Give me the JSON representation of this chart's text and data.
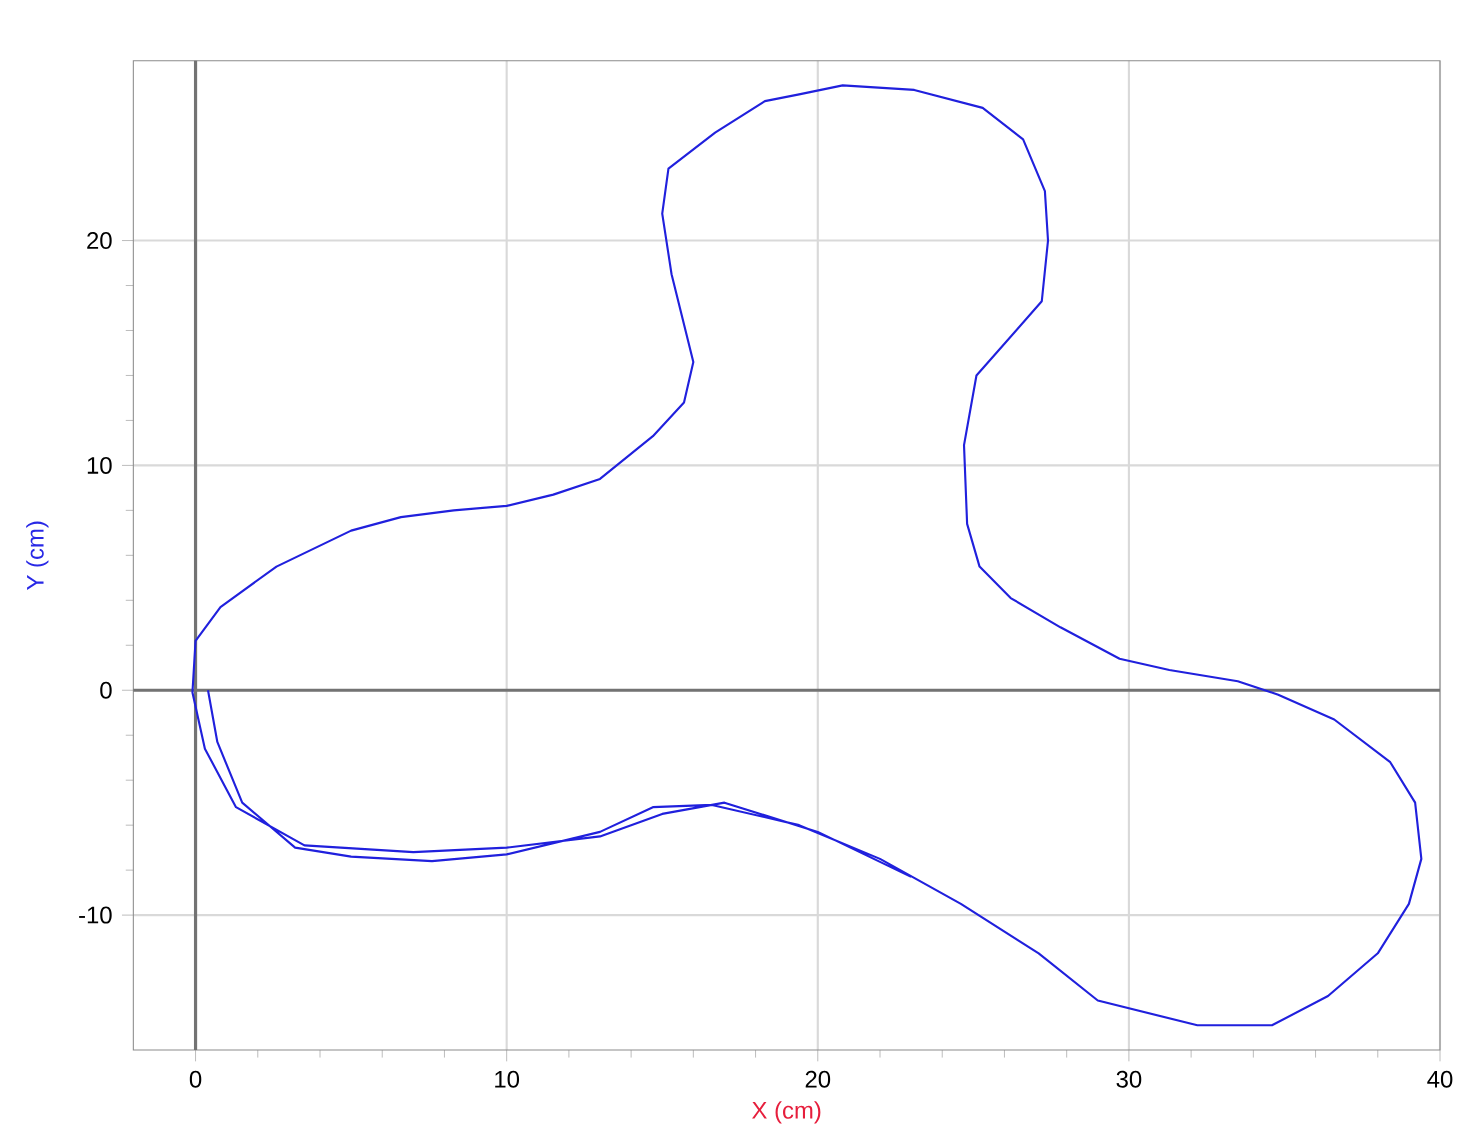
{
  "chart_data": {
    "type": "line",
    "xlabel": "X (cm)",
    "ylabel": "Y (cm)",
    "xlim": [
      -2,
      40
    ],
    "ylim": [
      -16,
      28
    ],
    "xticks": [
      0,
      10,
      20,
      30,
      40
    ],
    "yticks": [
      -10,
      0,
      10,
      20
    ],
    "grid": true,
    "marker": "none",
    "line_style": "solid",
    "series": [
      {
        "color": "#2020dd",
        "x": [
          0.4,
          0.7,
          1.5,
          3.2,
          5,
          7.6,
          10,
          13,
          14.7,
          16.6,
          19.4,
          22,
          24.6,
          27.1,
          29,
          32.2,
          34.6,
          36.4,
          38,
          39,
          39.4,
          39.2,
          38.4,
          36.6,
          34.8,
          33.5,
          31.3,
          29.7,
          27.8,
          26.2,
          25.2,
          24.8,
          24.7,
          25.1,
          27.2,
          27.4,
          27.3,
          26.6,
          25.3,
          23.1,
          20.8,
          19.4,
          18.3,
          16.7,
          15.2,
          15,
          15.3,
          16,
          15.7,
          14.7,
          13,
          11.5,
          10,
          8.3,
          6.6,
          5,
          2.6,
          0.8,
          0,
          -0.1,
          0.3,
          1.3,
          3.5,
          7,
          10,
          13,
          15,
          17,
          20,
          23
        ],
        "values": [
          0,
          -2.3,
          -5,
          -7,
          -7.4,
          -7.6,
          -7.3,
          -6.3,
          -5.2,
          -5.1,
          -6,
          -7.5,
          -9.5,
          -11.7,
          -13.8,
          -14.9,
          -14.9,
          -13.6,
          -11.7,
          -9.5,
          -7.5,
          -5,
          -3.2,
          -1.3,
          -0.2,
          0.4,
          0.9,
          1.4,
          2.8,
          4.1,
          5.5,
          7.4,
          10.9,
          14,
          17.3,
          20,
          22.2,
          24.5,
          25.9,
          26.7,
          26.9,
          26.5,
          26.2,
          24.8,
          23.2,
          21.2,
          18.5,
          14.6,
          12.8,
          11.3,
          9.4,
          8.7,
          8.2,
          8,
          7.7,
          7.1,
          5.5,
          3.7,
          2.2,
          -0.1,
          -2.6,
          -5.2,
          -6.9,
          -7.2,
          -7,
          -6.5,
          -5.5,
          -5,
          -6.3,
          -8.3
        ]
      }
    ]
  }
}
